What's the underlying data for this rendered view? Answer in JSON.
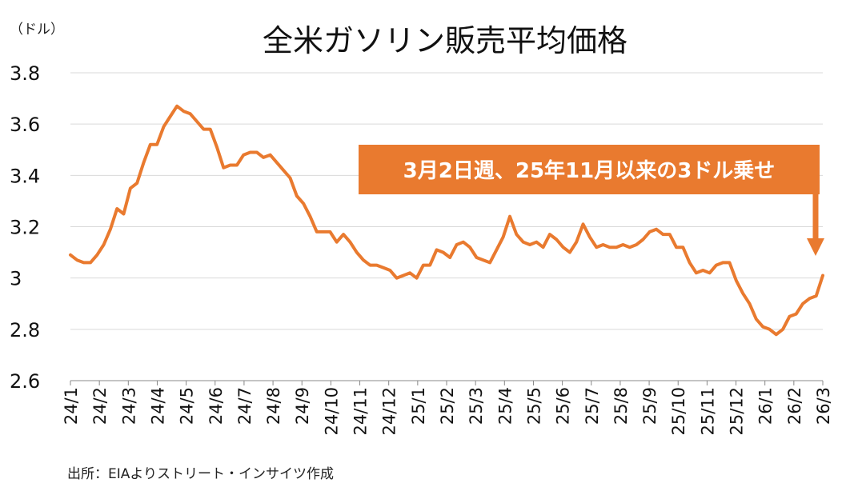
{
  "chart_data": {
    "type": "line",
    "title": "全米ガソリン販売平均価格",
    "y_unit": "（ドル）",
    "ylim": [
      2.6,
      3.8
    ],
    "y_ticks": [
      "2.6",
      "2.8",
      "3",
      "3.2",
      "3.4",
      "3.6",
      "3.8"
    ],
    "y_tick_values": [
      2.6,
      2.8,
      3.0,
      3.2,
      3.4,
      3.6,
      3.8
    ],
    "grid": true,
    "x_tick_labels": [
      "24/1",
      "24/2",
      "24/3",
      "24/4",
      "24/5",
      "24/6",
      "24/7",
      "24/8",
      "24/9",
      "24/10",
      "24/11",
      "24/12",
      "25/1",
      "25/2",
      "25/3",
      "25/4",
      "25/5",
      "25/6",
      "25/7",
      "25/8",
      "25/9",
      "25/10",
      "25/11",
      "25/12",
      "26/1",
      "26/2",
      "26/3"
    ],
    "series": [
      {
        "color": "#e97a2f",
        "values": [
          3.09,
          3.07,
          3.06,
          3.06,
          3.09,
          3.13,
          3.19,
          3.27,
          3.25,
          3.35,
          3.37,
          3.45,
          3.52,
          3.52,
          3.59,
          3.63,
          3.67,
          3.65,
          3.64,
          3.61,
          3.58,
          3.58,
          3.51,
          3.43,
          3.44,
          3.44,
          3.48,
          3.49,
          3.49,
          3.47,
          3.48,
          3.45,
          3.42,
          3.39,
          3.32,
          3.29,
          3.24,
          3.18,
          3.18,
          3.18,
          3.14,
          3.17,
          3.14,
          3.1,
          3.07,
          3.05,
          3.05,
          3.04,
          3.03,
          3.0,
          3.01,
          3.02,
          3.0,
          3.05,
          3.05,
          3.11,
          3.1,
          3.08,
          3.13,
          3.14,
          3.12,
          3.08,
          3.07,
          3.06,
          3.11,
          3.16,
          3.24,
          3.17,
          3.14,
          3.13,
          3.14,
          3.12,
          3.17,
          3.15,
          3.12,
          3.1,
          3.14,
          3.21,
          3.16,
          3.12,
          3.13,
          3.12,
          3.12,
          3.13,
          3.12,
          3.13,
          3.15,
          3.18,
          3.19,
          3.17,
          3.17,
          3.12,
          3.12,
          3.06,
          3.02,
          3.03,
          3.02,
          3.05,
          3.06,
          3.06,
          2.99,
          2.94,
          2.9,
          2.84,
          2.81,
          2.8,
          2.78,
          2.8,
          2.85,
          2.86,
          2.9,
          2.92,
          2.93,
          3.01
        ]
      }
    ],
    "annotations": [
      {
        "text": "3月2日週、25年11月以来の3ドル乗せ",
        "background": "#e97a2f"
      }
    ]
  },
  "footer": {
    "source": "出所：EIAよりストリート・インサイツ作成"
  }
}
